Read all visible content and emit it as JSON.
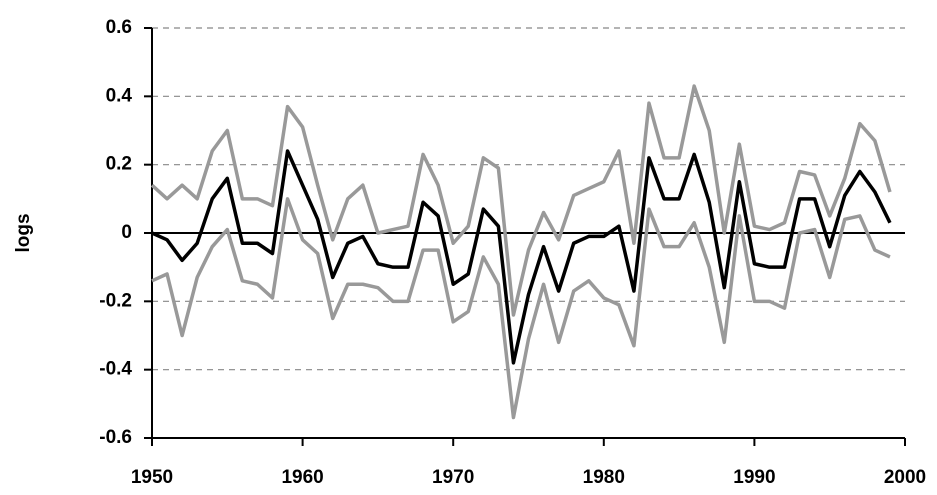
{
  "chart_data": {
    "type": "line",
    "y_label": "logs",
    "x": [
      1950,
      1951,
      1952,
      1953,
      1954,
      1955,
      1956,
      1957,
      1958,
      1959,
      1960,
      1961,
      1962,
      1963,
      1964,
      1965,
      1966,
      1967,
      1968,
      1969,
      1970,
      1971,
      1972,
      1973,
      1974,
      1975,
      1976,
      1977,
      1978,
      1979,
      1980,
      1981,
      1982,
      1983,
      1984,
      1985,
      1986,
      1987,
      1988,
      1989,
      1990,
      1991,
      1992,
      1993,
      1994,
      1995,
      1996,
      1997,
      1998,
      1999
    ],
    "series": [
      {
        "color": "#999999",
        "values": [
          0.14,
          0.1,
          0.14,
          0.1,
          0.24,
          0.3,
          0.1,
          0.1,
          0.08,
          0.37,
          0.31,
          0.14,
          -0.02,
          0.1,
          0.14,
          0.0,
          0.01,
          0.02,
          0.23,
          0.14,
          -0.03,
          0.02,
          0.22,
          0.19,
          -0.24,
          -0.05,
          0.06,
          -0.02,
          0.11,
          0.13,
          0.15,
          0.24,
          -0.03,
          0.38,
          0.22,
          0.22,
          0.43,
          0.3,
          0.0,
          0.26,
          0.02,
          0.01,
          0.03,
          0.18,
          0.17,
          0.05,
          0.16,
          0.32,
          0.27,
          0.12
        ]
      },
      {
        "color": "#999999",
        "values": [
          -0.14,
          -0.12,
          -0.3,
          -0.13,
          -0.04,
          0.01,
          -0.14,
          -0.15,
          -0.19,
          0.1,
          -0.02,
          -0.06,
          -0.25,
          -0.15,
          -0.15,
          -0.16,
          -0.2,
          -0.2,
          -0.05,
          -0.05,
          -0.26,
          -0.23,
          -0.07,
          -0.15,
          -0.54,
          -0.31,
          -0.15,
          -0.32,
          -0.17,
          -0.14,
          -0.19,
          -0.21,
          -0.33,
          0.07,
          -0.04,
          -0.04,
          0.03,
          -0.1,
          -0.32,
          0.05,
          -0.2,
          -0.2,
          -0.22,
          0.0,
          0.01,
          -0.13,
          0.04,
          0.05,
          -0.05,
          -0.07
        ]
      },
      {
        "color": "#000000",
        "values": [
          0.0,
          -0.02,
          -0.08,
          -0.03,
          0.1,
          0.16,
          -0.03,
          -0.03,
          -0.06,
          0.24,
          0.14,
          0.04,
          -0.13,
          -0.03,
          -0.01,
          -0.09,
          -0.1,
          -0.1,
          0.09,
          0.05,
          -0.15,
          -0.12,
          0.07,
          0.02,
          -0.38,
          -0.18,
          -0.04,
          -0.17,
          -0.03,
          -0.01,
          -0.01,
          0.02,
          -0.17,
          0.22,
          0.1,
          0.1,
          0.23,
          0.09,
          -0.16,
          0.15,
          -0.09,
          -0.1,
          -0.1,
          0.1,
          0.1,
          -0.04,
          0.11,
          0.18,
          0.12,
          0.03
        ]
      }
    ],
    "xlim": [
      1950,
      2000
    ],
    "xticks": [
      1950,
      1960,
      1970,
      1980,
      1990,
      2000
    ],
    "ylim": [
      -0.6,
      0.6
    ],
    "yticks": [
      -0.6,
      -0.4,
      -0.2,
      0,
      0.2,
      0.4,
      0.6
    ],
    "grid": true
  }
}
